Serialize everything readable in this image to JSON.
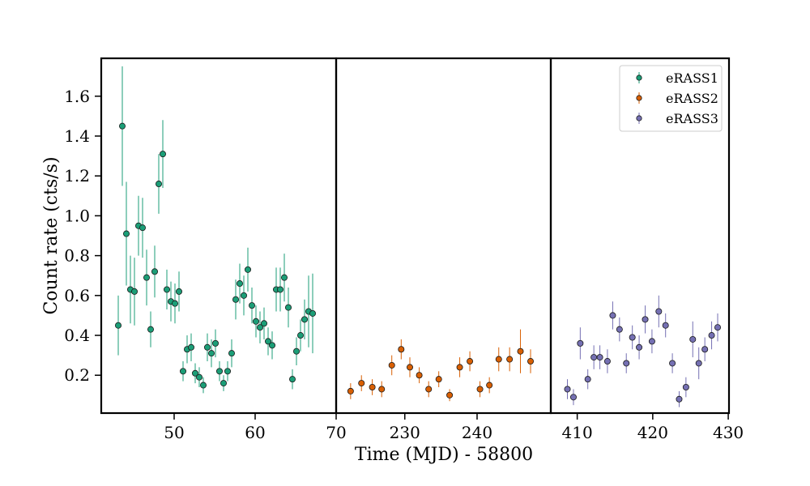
{
  "chart_data": {
    "type": "scatter",
    "xlabel": "Time (MJD) - 58800",
    "ylabel": "Count rate (cts/s)",
    "ylim": [
      0.01,
      1.79
    ],
    "yticks": [
      0.2,
      0.4,
      0.6,
      0.8,
      1.0,
      1.2,
      1.4,
      1.6
    ],
    "yticklabels": [
      "0.2",
      "0.4",
      "0.6",
      "0.8",
      "1.0",
      "1.2",
      "1.4",
      "1.6"
    ],
    "grid": false,
    "legend_position": "top-right",
    "colors": {
      "eRASS1": "#1b9e77",
      "eRASS2": "#d95f02",
      "eRASS3": "#7570b3",
      "frame": "#000000"
    },
    "panels": [
      {
        "xlim": [
          41,
          70
        ],
        "xticks": [
          50,
          60,
          70
        ],
        "xticklabels": [
          "50",
          "60",
          "70"
        ]
      },
      {
        "xlim": [
          220.5,
          250.2
        ],
        "xticks": [
          230,
          240
        ],
        "xticklabels": [
          "230",
          "240"
        ]
      },
      {
        "xlim": [
          406.5,
          430.1
        ],
        "xticks": [
          410,
          420,
          430
        ],
        "xticklabels": [
          "410",
          "420",
          "430"
        ]
      }
    ],
    "series": [
      {
        "name": "eRASS1",
        "panel": 0,
        "x": [
          43.1,
          43.6,
          44.1,
          44.6,
          45.1,
          45.6,
          46.1,
          46.6,
          47.1,
          47.6,
          48.1,
          48.6,
          49.1,
          49.6,
          50.1,
          50.6,
          51.1,
          51.6,
          52.1,
          52.6,
          53.1,
          53.6,
          54.1,
          54.6,
          55.1,
          55.6,
          56.1,
          56.6,
          57.1,
          57.6,
          58.1,
          58.6,
          59.1,
          59.6,
          60.1,
          60.6,
          61.1,
          61.6,
          62.1,
          62.6,
          63.1,
          63.6,
          64.1,
          64.6,
          65.1,
          65.6,
          66.1,
          66.6,
          67.1
        ],
        "y": [
          0.45,
          1.45,
          0.91,
          0.63,
          0.62,
          0.95,
          0.94,
          0.69,
          0.43,
          0.72,
          1.16,
          1.31,
          0.63,
          0.57,
          0.56,
          0.62,
          0.22,
          0.33,
          0.34,
          0.21,
          0.19,
          0.15,
          0.34,
          0.31,
          0.36,
          0.22,
          0.16,
          0.22,
          0.31,
          0.58,
          0.66,
          0.6,
          0.73,
          0.55,
          0.47,
          0.44,
          0.46,
          0.37,
          0.35,
          0.63,
          0.63,
          0.69,
          0.54,
          0.18,
          0.32,
          0.4,
          0.48,
          0.52,
          0.51
        ],
        "yerr": [
          0.15,
          0.3,
          0.26,
          0.17,
          0.17,
          0.15,
          0.15,
          0.14,
          0.09,
          0.13,
          0.15,
          0.17,
          0.1,
          0.1,
          0.1,
          0.1,
          0.05,
          0.07,
          0.07,
          0.05,
          0.05,
          0.04,
          0.07,
          0.07,
          0.07,
          0.05,
          0.04,
          0.05,
          0.07,
          0.1,
          0.1,
          0.1,
          0.11,
          0.09,
          0.08,
          0.08,
          0.08,
          0.07,
          0.07,
          0.11,
          0.11,
          0.12,
          0.1,
          0.05,
          0.07,
          0.08,
          0.1,
          0.18,
          0.2
        ]
      },
      {
        "name": "eRASS2",
        "panel": 1,
        "x": [
          222.5,
          224.0,
          225.5,
          226.8,
          228.2,
          229.5,
          230.7,
          232.0,
          233.3,
          234.7,
          236.2,
          237.6,
          239.0,
          240.4,
          241.7,
          243.0,
          244.5,
          246.0,
          247.4
        ],
        "y": [
          0.12,
          0.16,
          0.14,
          0.13,
          0.25,
          0.33,
          0.24,
          0.2,
          0.13,
          0.18,
          0.1,
          0.24,
          0.27,
          0.13,
          0.15,
          0.28,
          0.28,
          0.32,
          0.27
        ],
        "yerr": [
          0.04,
          0.04,
          0.04,
          0.04,
          0.05,
          0.05,
          0.05,
          0.04,
          0.04,
          0.04,
          0.03,
          0.05,
          0.05,
          0.04,
          0.04,
          0.06,
          0.06,
          0.11,
          0.06
        ]
      },
      {
        "name": "eRASS3",
        "panel": 2,
        "x": [
          408.7,
          409.5,
          410.4,
          411.4,
          412.2,
          413.0,
          414.0,
          414.7,
          415.6,
          416.5,
          417.3,
          418.2,
          419.0,
          419.9,
          420.8,
          421.7,
          422.6,
          423.5,
          424.4,
          425.3,
          426.1,
          426.9,
          427.8,
          428.6
        ],
        "y": [
          0.13,
          0.09,
          0.36,
          0.18,
          0.29,
          0.29,
          0.27,
          0.5,
          0.43,
          0.26,
          0.39,
          0.34,
          0.48,
          0.37,
          0.52,
          0.45,
          0.26,
          0.08,
          0.14,
          0.38,
          0.26,
          0.33,
          0.4,
          0.44
        ],
        "yerr": [
          0.05,
          0.04,
          0.08,
          0.05,
          0.06,
          0.06,
          0.06,
          0.07,
          0.06,
          0.05,
          0.06,
          0.06,
          0.07,
          0.06,
          0.08,
          0.06,
          0.05,
          0.04,
          0.05,
          0.09,
          0.08,
          0.06,
          0.07,
          0.07
        ]
      }
    ]
  }
}
